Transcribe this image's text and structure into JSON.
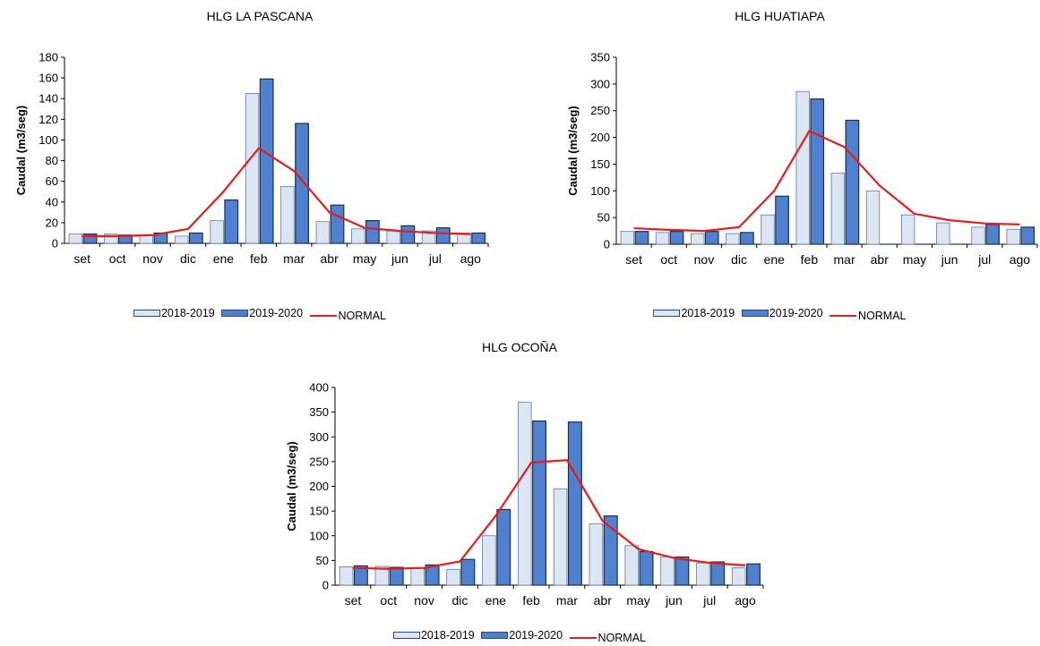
{
  "chart_data": [
    {
      "type": "bar",
      "title": "HLG LA PASCANA",
      "ylabel": "Caudal (m3/seg)",
      "xlabel": "",
      "ylim": [
        0,
        180
      ],
      "yticks": [
        0,
        20,
        40,
        60,
        80,
        100,
        120,
        140,
        160,
        180
      ],
      "categories": [
        "set",
        "oct",
        "nov",
        "dic",
        "ene",
        "feb",
        "mar",
        "abr",
        "may",
        "jun",
        "jul",
        "ago"
      ],
      "series": [
        {
          "name": "2018-2019",
          "kind": "bar",
          "color": "#dce6f2",
          "values": [
            9,
            9,
            8,
            7,
            22,
            145,
            55,
            21,
            14,
            12,
            12,
            10
          ]
        },
        {
          "name": "2019-2020",
          "kind": "bar",
          "color": "#4f81d0",
          "values": [
            9,
            8,
            10,
            10,
            42,
            159,
            116,
            37,
            22,
            17,
            15,
            10
          ]
        },
        {
          "name": "NORMAL",
          "kind": "line",
          "color": "#e01e1e",
          "values": [
            7,
            7,
            8,
            14,
            50,
            92,
            70,
            30,
            15,
            12,
            10,
            9
          ]
        }
      ],
      "grid": false,
      "legend": "bottom"
    },
    {
      "type": "bar",
      "title": "HLG HUATIAPA",
      "ylabel": "Caudal (m3/seg)",
      "xlabel": "",
      "ylim": [
        0,
        350
      ],
      "yticks": [
        0,
        50,
        100,
        150,
        200,
        250,
        300,
        350
      ],
      "categories": [
        "set",
        "oct",
        "nov",
        "dic",
        "ene",
        "feb",
        "mar",
        "abr",
        "may",
        "jun",
        "jul",
        "ago"
      ],
      "series": [
        {
          "name": "2018-2019",
          "kind": "bar",
          "color": "#dce6f2",
          "values": [
            24,
            22,
            20,
            20,
            55,
            286,
            133,
            100,
            55,
            40,
            32,
            28
          ]
        },
        {
          "name": "2019-2020",
          "kind": "bar",
          "color": "#4f81d0",
          "values": [
            24,
            24,
            24,
            22,
            90,
            272,
            232,
            null,
            null,
            null,
            37,
            32
          ]
        },
        {
          "name": "NORMAL",
          "kind": "line",
          "color": "#e01e1e",
          "values": [
            30,
            27,
            25,
            32,
            100,
            212,
            182,
            110,
            57,
            45,
            39,
            37
          ]
        }
      ],
      "grid": false,
      "legend": "bottom"
    },
    {
      "type": "bar",
      "title": "HLG OCOÑA",
      "ylabel": "Caudal (m3/seg)",
      "xlabel": "",
      "ylim": [
        0,
        400
      ],
      "yticks": [
        0,
        50,
        100,
        150,
        200,
        250,
        300,
        350,
        400
      ],
      "categories": [
        "set",
        "oct",
        "nov",
        "dic",
        "ene",
        "feb",
        "mar",
        "abr",
        "may",
        "jun",
        "jul",
        "ago"
      ],
      "series": [
        {
          "name": "2018-2019",
          "kind": "bar",
          "color": "#dce6f2",
          "values": [
            37,
            38,
            35,
            32,
            100,
            370,
            195,
            124,
            80,
            57,
            45,
            35
          ]
        },
        {
          "name": "2019-2020",
          "kind": "bar",
          "color": "#4f81d0",
          "values": [
            39,
            36,
            41,
            52,
            153,
            332,
            330,
            140,
            68,
            57,
            47,
            43
          ]
        },
        {
          "name": "NORMAL",
          "kind": "line",
          "color": "#e01e1e",
          "values": [
            35,
            33,
            35,
            48,
            140,
            248,
            253,
            130,
            73,
            55,
            45,
            40
          ]
        }
      ],
      "grid": false,
      "legend": "bottom"
    }
  ]
}
